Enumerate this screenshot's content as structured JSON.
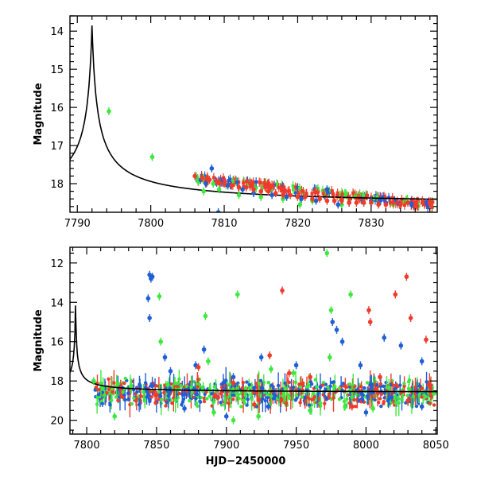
{
  "colors": {
    "blue": "#1f5fd6",
    "green": "#3ee83e",
    "red": "#f23a2a",
    "model": "#000000"
  },
  "chart_data": [
    {
      "type": "scatter",
      "ylabel": "Magnitude",
      "xlabel": "",
      "xlim": [
        7789,
        7839
      ],
      "ylim": [
        18.75,
        13.6
      ],
      "y_inverted": true,
      "x_ticks": [
        7790,
        7800,
        7810,
        7820,
        7830
      ],
      "y_ticks": [
        14,
        15,
        16,
        17,
        18
      ],
      "model_curve": {
        "peak_x": 7792,
        "peak_y": 13.85,
        "baseline": 18.6
      },
      "series": [
        {
          "color_key": "green",
          "points": [
            [
              7794.3,
              16.1
            ],
            [
              7800.2,
              17.3
            ],
            [
              7806.5,
              17.95
            ],
            [
              7807.2,
              18.2
            ],
            [
              7808.5,
              18.0
            ],
            [
              7809.3,
              18.15
            ],
            [
              7812.0,
              18.3
            ],
            [
              7815.0,
              18.35
            ],
            [
              7818.0,
              18.4
            ],
            [
              7820.3,
              18.55
            ],
            [
              7822.0,
              18.45
            ],
            [
              7826.0,
              18.55
            ],
            [
              7829.0,
              18.5
            ],
            [
              7833.0,
              18.55
            ]
          ]
        },
        {
          "color_key": "blue",
          "points": [
            [
              7806.8,
              17.9
            ],
            [
              7807.5,
              18.0
            ],
            [
              7808.3,
              17.6
            ],
            [
              7809.2,
              18.75
            ],
            [
              7810.5,
              18.05
            ],
            [
              7812.5,
              18.15
            ],
            [
              7814.0,
              18.25
            ],
            [
              7816.5,
              18.3
            ],
            [
              7818.5,
              18.35
            ],
            [
              7820.5,
              18.4
            ],
            [
              7822.5,
              18.45
            ],
            [
              7824.0,
              18.15
            ],
            [
              7825.5,
              18.55
            ],
            [
              7827.0,
              18.5
            ],
            [
              7830.0,
              18.45
            ],
            [
              7832.0,
              18.5
            ],
            [
              7835.5,
              18.55
            ],
            [
              7837.5,
              18.5
            ]
          ]
        },
        {
          "color_key": "red",
          "points": [
            [
              7806.0,
              17.8
            ],
            [
              7807.0,
              17.85
            ],
            [
              7808.0,
              17.9
            ],
            [
              7809.0,
              17.95
            ],
            [
              7810.0,
              18.0
            ],
            [
              7811.0,
              18.05
            ],
            [
              7812.0,
              18.1
            ],
            [
              7813.0,
              18.1
            ],
            [
              7814.0,
              18.15
            ],
            [
              7815.0,
              18.2
            ],
            [
              7816.0,
              18.2
            ],
            [
              7817.0,
              18.25
            ],
            [
              7818.0,
              18.3
            ],
            [
              7819.0,
              18.3
            ],
            [
              7820.0,
              18.35
            ],
            [
              7821.0,
              18.35
            ],
            [
              7822.0,
              18.4
            ],
            [
              7823.0,
              18.4
            ],
            [
              7824.0,
              18.45
            ],
            [
              7825.0,
              18.45
            ],
            [
              7826.0,
              18.45
            ],
            [
              7827.0,
              18.5
            ],
            [
              7828.0,
              18.5
            ],
            [
              7829.0,
              18.5
            ],
            [
              7830.0,
              18.5
            ],
            [
              7831.0,
              18.55
            ],
            [
              7832.0,
              18.55
            ],
            [
              7833.0,
              18.5
            ],
            [
              7834.0,
              18.55
            ],
            [
              7835.0,
              18.5
            ],
            [
              7836.0,
              18.55
            ],
            [
              7837.0,
              18.5
            ],
            [
              7838.0,
              18.5
            ]
          ]
        }
      ]
    },
    {
      "type": "scatter",
      "ylabel": "Magnitude",
      "xlabel": "HJD−2450000",
      "xlim": [
        7788,
        8051
      ],
      "ylim": [
        20.7,
        11.2
      ],
      "y_inverted": true,
      "x_ticks": [
        7800,
        7850,
        7900,
        7950,
        8000,
        8050
      ],
      "y_ticks": [
        12,
        14,
        16,
        18,
        20
      ],
      "model_curve": {
        "peak_x": 7792,
        "peak_y": 13.85,
        "baseline": 18.6
      },
      "series": [
        {
          "color_key": "blue",
          "points": [
            [
              7845,
              12.6
            ],
            [
              7846,
              12.8
            ],
            [
              7847,
              12.7
            ],
            [
              7844,
              13.8
            ],
            [
              7845,
              14.8
            ],
            [
              7856,
              16.8
            ],
            [
              7860,
              17.5
            ],
            [
              7878,
              17.2
            ],
            [
              7884,
              16.4
            ],
            [
              7905,
              17.8
            ],
            [
              7925,
              16.8
            ],
            [
              7950,
              17.2
            ],
            [
              7976,
              15.0
            ],
            [
              7979,
              15.4
            ],
            [
              7983,
              16.0
            ],
            [
              7996,
              17.2
            ],
            [
              8013,
              15.8
            ],
            [
              8025,
              16.2
            ],
            [
              8040,
              17.0
            ],
            [
              7870,
              19.4
            ],
            [
              7900,
              19.8
            ],
            [
              7930,
              19.3
            ],
            [
              7960,
              19.5
            ],
            [
              8000,
              19.6
            ],
            [
              8040,
              19.3
            ]
          ]
        },
        {
          "color_key": "green",
          "points": [
            [
              7805,
              18.0
            ],
            [
              7820,
              19.8
            ],
            [
              7852,
              13.7
            ],
            [
              7853,
              16.0
            ],
            [
              7858,
              18.2
            ],
            [
              7885,
              14.7
            ],
            [
              7887,
              17.0
            ],
            [
              7891,
              19.6
            ],
            [
              7905,
              20.0
            ],
            [
              7908,
              13.6
            ],
            [
              7923,
              19.8
            ],
            [
              7948,
              17.6
            ],
            [
              7972,
              11.5
            ],
            [
              7975,
              14.4
            ],
            [
              7974,
              16.8
            ],
            [
              7985,
              19.3
            ],
            [
              7989,
              13.6
            ],
            [
              8005,
              19.4
            ],
            [
              7932,
              17.4
            ],
            [
              7960,
              19.5
            ]
          ]
        },
        {
          "color_key": "red",
          "points": [
            [
              7880,
              17.3
            ],
            [
              7905,
              18.1
            ],
            [
              7931,
              16.7
            ],
            [
              7940,
              13.4
            ],
            [
              7945,
              17.6
            ],
            [
              7960,
              17.8
            ],
            [
              8002,
              14.4
            ],
            [
              8003,
              15.0
            ],
            [
              8010,
              17.8
            ],
            [
              8021,
              13.6
            ],
            [
              8029,
              12.7
            ],
            [
              8032,
              14.8
            ],
            [
              8043,
              15.9
            ],
            [
              8045,
              18.2
            ],
            [
              7920,
              19.2
            ],
            [
              7990,
              19.3
            ],
            [
              8030,
              19.0
            ]
          ]
        }
      ]
    }
  ]
}
